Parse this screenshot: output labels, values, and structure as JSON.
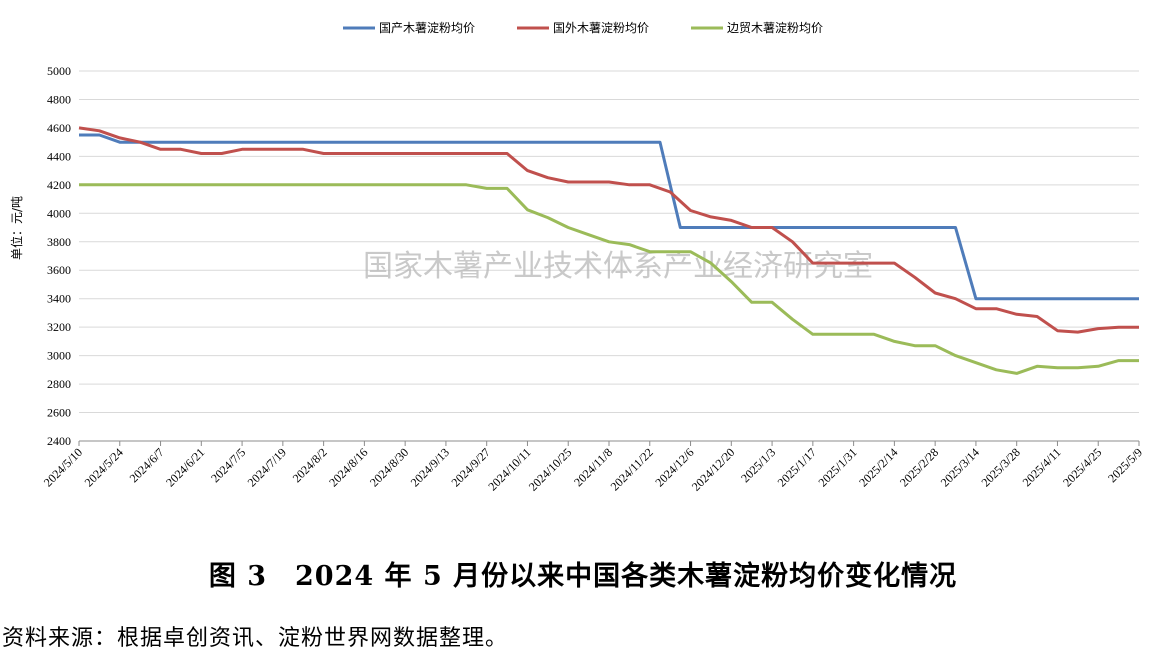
{
  "chart_data": {
    "type": "line",
    "title": "",
    "xlabel": "",
    "ylabel": "单位：元/吨",
    "ylim": [
      2400,
      5000
    ],
    "yticks": [
      2400,
      2600,
      2800,
      3000,
      3200,
      3400,
      3600,
      3800,
      4000,
      4200,
      4400,
      4600,
      4800,
      5000
    ],
    "xticks": [
      "2024/5/10",
      "2024/5/24",
      "2024/6/7",
      "2024/6/21",
      "2024/7/5",
      "2024/7/19",
      "2024/8/2",
      "2024/8/16",
      "2024/8/30",
      "2024/9/13",
      "2024/9/27",
      "2024/10/11",
      "2024/10/25",
      "2024/11/8",
      "2024/11/22",
      "2024/12/6",
      "2024/12/20",
      "2025/1/3",
      "2025/1/17",
      "2025/1/31",
      "2025/2/14",
      "2025/2/28",
      "2025/3/14",
      "2025/3/28",
      "2025/4/11",
      "2025/4/25",
      "2025/5/9"
    ],
    "grid": true,
    "legend_position": "top",
    "watermark": "国家木薯产业技术体系产业经济研究室",
    "series": [
      {
        "name": "国产木薯淀粉均价",
        "color": "#4f7cba",
        "points": [
          [
            0,
            4550
          ],
          [
            2,
            4550
          ],
          [
            4,
            4500
          ],
          [
            28,
            4500
          ],
          [
            30,
            4500
          ],
          [
            57,
            4500
          ],
          [
            59,
            3900
          ],
          [
            86,
            3900
          ],
          [
            88,
            3400
          ],
          [
            104,
            3400
          ]
        ]
      },
      {
        "name": "国外木薯淀粉均价",
        "color": "#c0504d",
        "points": [
          [
            0,
            4600
          ],
          [
            2,
            4580
          ],
          [
            4,
            4530
          ],
          [
            6,
            4500
          ],
          [
            8,
            4450
          ],
          [
            10,
            4450
          ],
          [
            12,
            4420
          ],
          [
            14,
            4420
          ],
          [
            16,
            4450
          ],
          [
            22,
            4450
          ],
          [
            24,
            4420
          ],
          [
            42,
            4420
          ],
          [
            44,
            4300
          ],
          [
            46,
            4250
          ],
          [
            48,
            4220
          ],
          [
            52,
            4220
          ],
          [
            54,
            4200
          ],
          [
            56,
            4200
          ],
          [
            58,
            4150
          ],
          [
            60,
            4020
          ],
          [
            62,
            3975
          ],
          [
            64,
            3950
          ],
          [
            66,
            3900
          ],
          [
            68,
            3900
          ],
          [
            70,
            3800
          ],
          [
            72,
            3650
          ],
          [
            80,
            3650
          ],
          [
            82,
            3550
          ],
          [
            84,
            3440
          ],
          [
            86,
            3400
          ],
          [
            88,
            3330
          ],
          [
            90,
            3330
          ],
          [
            92,
            3290
          ],
          [
            94,
            3275
          ],
          [
            96,
            3175
          ],
          [
            98,
            3165
          ],
          [
            100,
            3190
          ],
          [
            102,
            3200
          ],
          [
            104,
            3200
          ]
        ]
      },
      {
        "name": "边贸木薯淀粉均价",
        "color": "#9bbb59",
        "points": [
          [
            0,
            4200
          ],
          [
            38,
            4200
          ],
          [
            40,
            4175
          ],
          [
            42,
            4175
          ],
          [
            44,
            4025
          ],
          [
            46,
            3970
          ],
          [
            48,
            3900
          ],
          [
            50,
            3850
          ],
          [
            52,
            3800
          ],
          [
            54,
            3780
          ],
          [
            56,
            3730
          ],
          [
            58,
            3730
          ],
          [
            60,
            3730
          ],
          [
            62,
            3650
          ],
          [
            64,
            3520
          ],
          [
            66,
            3375
          ],
          [
            68,
            3375
          ],
          [
            70,
            3255
          ],
          [
            72,
            3150
          ],
          [
            78,
            3150
          ],
          [
            80,
            3100
          ],
          [
            82,
            3070
          ],
          [
            84,
            3070
          ],
          [
            86,
            3000
          ],
          [
            88,
            2950
          ],
          [
            90,
            2900
          ],
          [
            92,
            2875
          ],
          [
            94,
            2925
          ],
          [
            96,
            2915
          ],
          [
            98,
            2915
          ],
          [
            100,
            2925
          ],
          [
            102,
            2965
          ],
          [
            104,
            2965
          ]
        ]
      }
    ]
  },
  "caption": {
    "number": "图 3",
    "text": "2024 年 5 月份以来中国各类木薯淀粉均价变化情况"
  },
  "source_note": "资料来源：根据卓创资讯、淀粉世界网数据整理。"
}
